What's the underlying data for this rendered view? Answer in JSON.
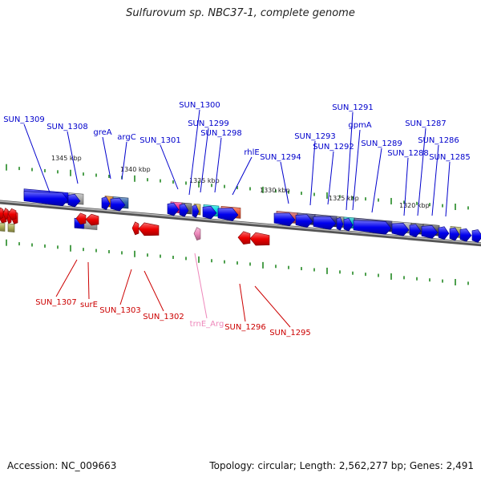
{
  "title": "Sulfurovum sp. NBC37-1, complete genome",
  "footer": {
    "accession": "Accession: NC_009663",
    "summary": "Topology: circular; Length: 2,562,277 bp; Genes: 2,491"
  },
  "colors": {
    "forward_label": "#0000cc",
    "reverse_label": "#cc0000",
    "trna_label": "#ee88bb",
    "backbone": "#777777",
    "tick": "#228822"
  },
  "scale": {
    "ticks": [
      "1345 kbp",
      "1340 kbp",
      "1335 kbp",
      "1330 kbp",
      "1325 kbp",
      "1320 kbp"
    ]
  },
  "forward_genes": [
    "SUN_1309",
    "SUN_1308",
    "greA",
    "argC",
    "SUN_1301",
    "SUN_1300",
    "SUN_1299",
    "SUN_1298",
    "rhlE",
    "SUN_1294",
    "SUN_1293",
    "SUN_1292",
    "SUN_1291",
    "gpmA",
    "SUN_1289",
    "SUN_1288",
    "SUN_1287",
    "SUN_1286",
    "SUN_1285"
  ],
  "reverse_genes": [
    "SUN_1307",
    "surE",
    "SUN_1303",
    "SUN_1302",
    "trnE_Arg",
    "SUN_1296",
    "SUN_1295"
  ]
}
